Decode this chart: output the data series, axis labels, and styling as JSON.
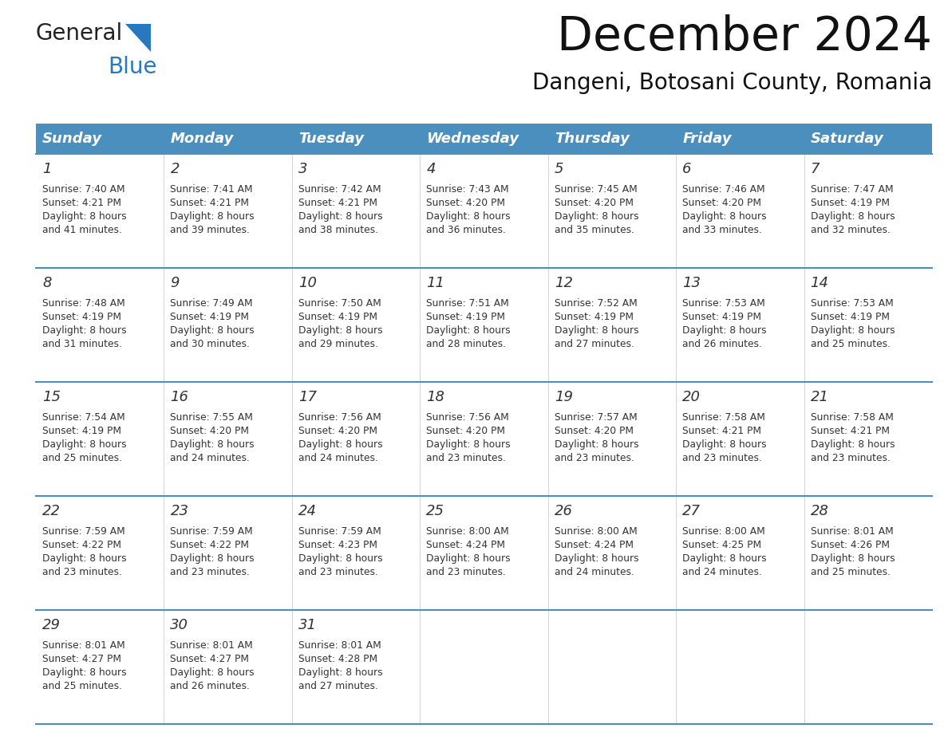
{
  "title": "December 2024",
  "subtitle": "Dangeni, Botosani County, Romania",
  "header_bg_color": "#4a8fbd",
  "header_text_color": "#ffffff",
  "border_color": "#4a8fbd",
  "text_color": "#333333",
  "day_headers": [
    "Sunday",
    "Monday",
    "Tuesday",
    "Wednesday",
    "Thursday",
    "Friday",
    "Saturday"
  ],
  "calendar_data": [
    [
      {
        "day": 1,
        "sunrise": "7:40 AM",
        "sunset": "4:21 PM",
        "daylight_hours": 8,
        "daylight_minutes": 41
      },
      {
        "day": 2,
        "sunrise": "7:41 AM",
        "sunset": "4:21 PM",
        "daylight_hours": 8,
        "daylight_minutes": 39
      },
      {
        "day": 3,
        "sunrise": "7:42 AM",
        "sunset": "4:21 PM",
        "daylight_hours": 8,
        "daylight_minutes": 38
      },
      {
        "day": 4,
        "sunrise": "7:43 AM",
        "sunset": "4:20 PM",
        "daylight_hours": 8,
        "daylight_minutes": 36
      },
      {
        "day": 5,
        "sunrise": "7:45 AM",
        "sunset": "4:20 PM",
        "daylight_hours": 8,
        "daylight_minutes": 35
      },
      {
        "day": 6,
        "sunrise": "7:46 AM",
        "sunset": "4:20 PM",
        "daylight_hours": 8,
        "daylight_minutes": 33
      },
      {
        "day": 7,
        "sunrise": "7:47 AM",
        "sunset": "4:19 PM",
        "daylight_hours": 8,
        "daylight_minutes": 32
      }
    ],
    [
      {
        "day": 8,
        "sunrise": "7:48 AM",
        "sunset": "4:19 PM",
        "daylight_hours": 8,
        "daylight_minutes": 31
      },
      {
        "day": 9,
        "sunrise": "7:49 AM",
        "sunset": "4:19 PM",
        "daylight_hours": 8,
        "daylight_minutes": 30
      },
      {
        "day": 10,
        "sunrise": "7:50 AM",
        "sunset": "4:19 PM",
        "daylight_hours": 8,
        "daylight_minutes": 29
      },
      {
        "day": 11,
        "sunrise": "7:51 AM",
        "sunset": "4:19 PM",
        "daylight_hours": 8,
        "daylight_minutes": 28
      },
      {
        "day": 12,
        "sunrise": "7:52 AM",
        "sunset": "4:19 PM",
        "daylight_hours": 8,
        "daylight_minutes": 27
      },
      {
        "day": 13,
        "sunrise": "7:53 AM",
        "sunset": "4:19 PM",
        "daylight_hours": 8,
        "daylight_minutes": 26
      },
      {
        "day": 14,
        "sunrise": "7:53 AM",
        "sunset": "4:19 PM",
        "daylight_hours": 8,
        "daylight_minutes": 25
      }
    ],
    [
      {
        "day": 15,
        "sunrise": "7:54 AM",
        "sunset": "4:19 PM",
        "daylight_hours": 8,
        "daylight_minutes": 25
      },
      {
        "day": 16,
        "sunrise": "7:55 AM",
        "sunset": "4:20 PM",
        "daylight_hours": 8,
        "daylight_minutes": 24
      },
      {
        "day": 17,
        "sunrise": "7:56 AM",
        "sunset": "4:20 PM",
        "daylight_hours": 8,
        "daylight_minutes": 24
      },
      {
        "day": 18,
        "sunrise": "7:56 AM",
        "sunset": "4:20 PM",
        "daylight_hours": 8,
        "daylight_minutes": 23
      },
      {
        "day": 19,
        "sunrise": "7:57 AM",
        "sunset": "4:20 PM",
        "daylight_hours": 8,
        "daylight_minutes": 23
      },
      {
        "day": 20,
        "sunrise": "7:58 AM",
        "sunset": "4:21 PM",
        "daylight_hours": 8,
        "daylight_minutes": 23
      },
      {
        "day": 21,
        "sunrise": "7:58 AM",
        "sunset": "4:21 PM",
        "daylight_hours": 8,
        "daylight_minutes": 23
      }
    ],
    [
      {
        "day": 22,
        "sunrise": "7:59 AM",
        "sunset": "4:22 PM",
        "daylight_hours": 8,
        "daylight_minutes": 23
      },
      {
        "day": 23,
        "sunrise": "7:59 AM",
        "sunset": "4:22 PM",
        "daylight_hours": 8,
        "daylight_minutes": 23
      },
      {
        "day": 24,
        "sunrise": "7:59 AM",
        "sunset": "4:23 PM",
        "daylight_hours": 8,
        "daylight_minutes": 23
      },
      {
        "day": 25,
        "sunrise": "8:00 AM",
        "sunset": "4:24 PM",
        "daylight_hours": 8,
        "daylight_minutes": 23
      },
      {
        "day": 26,
        "sunrise": "8:00 AM",
        "sunset": "4:24 PM",
        "daylight_hours": 8,
        "daylight_minutes": 24
      },
      {
        "day": 27,
        "sunrise": "8:00 AM",
        "sunset": "4:25 PM",
        "daylight_hours": 8,
        "daylight_minutes": 24
      },
      {
        "day": 28,
        "sunrise": "8:01 AM",
        "sunset": "4:26 PM",
        "daylight_hours": 8,
        "daylight_minutes": 25
      }
    ],
    [
      {
        "day": 29,
        "sunrise": "8:01 AM",
        "sunset": "4:27 PM",
        "daylight_hours": 8,
        "daylight_minutes": 25
      },
      {
        "day": 30,
        "sunrise": "8:01 AM",
        "sunset": "4:27 PM",
        "daylight_hours": 8,
        "daylight_minutes": 26
      },
      {
        "day": 31,
        "sunrise": "8:01 AM",
        "sunset": "4:28 PM",
        "daylight_hours": 8,
        "daylight_minutes": 27
      },
      null,
      null,
      null,
      null
    ]
  ],
  "fig_width": 11.88,
  "fig_height": 9.18,
  "dpi": 100
}
